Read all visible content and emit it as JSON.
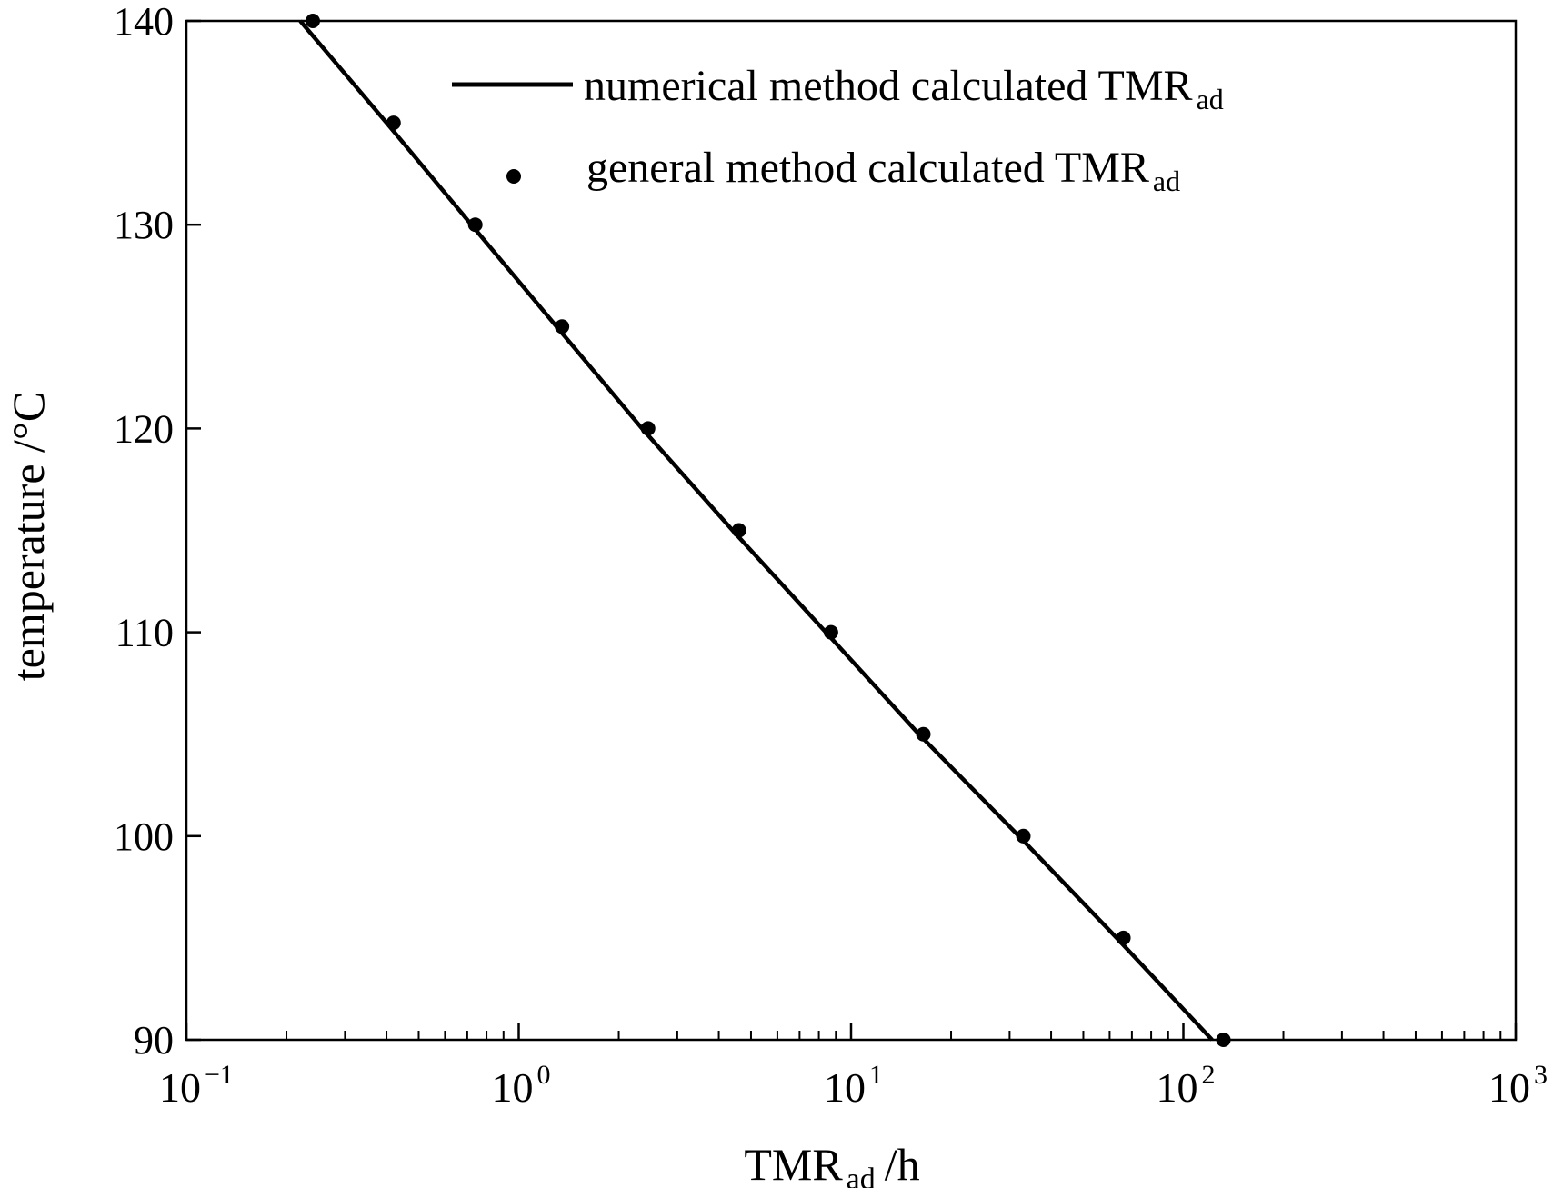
{
  "chart_data": {
    "type": "line",
    "title": "",
    "xlabel": "TMR",
    "xlabel_sub": "ad",
    "xlabel_unit": "/h",
    "ylabel": "temperature /°C",
    "xscale": "log",
    "xlim": [
      0.1,
      1000
    ],
    "ylim": [
      90,
      140
    ],
    "grid": false,
    "legend_position": "top-right",
    "x_ticks": [
      {
        "base": "10",
        "exp": "−1"
      },
      {
        "base": "10",
        "exp": "0"
      },
      {
        "base": "10",
        "exp": "1"
      },
      {
        "base": "10",
        "exp": "2"
      },
      {
        "base": "10",
        "exp": "3"
      }
    ],
    "y_ticks": [
      "90",
      "100",
      "110",
      "120",
      "130",
      "140"
    ],
    "series": [
      {
        "name": "numerical method calculated TMR",
        "name_sub": "ad",
        "style": "line",
        "color": "#000000",
        "points": [
          {
            "x": 0.22,
            "y": 140
          },
          {
            "x": 0.4,
            "y": 135
          },
          {
            "x": 0.72,
            "y": 130
          },
          {
            "x": 1.3,
            "y": 125
          },
          {
            "x": 2.35,
            "y": 120
          },
          {
            "x": 4.4,
            "y": 115
          },
          {
            "x": 8.4,
            "y": 110
          },
          {
            "x": 16.0,
            "y": 105
          },
          {
            "x": 32.0,
            "y": 100
          },
          {
            "x": 63.0,
            "y": 95
          },
          {
            "x": 122.0,
            "y": 90
          }
        ]
      },
      {
        "name": "general method calculated TMR",
        "name_sub": "ad",
        "style": "scatter",
        "color": "#000000",
        "points": [
          {
            "x": 0.24,
            "y": 140
          },
          {
            "x": 0.42,
            "y": 135
          },
          {
            "x": 0.74,
            "y": 130
          },
          {
            "x": 1.35,
            "y": 125
          },
          {
            "x": 2.45,
            "y": 120
          },
          {
            "x": 4.6,
            "y": 115
          },
          {
            "x": 8.7,
            "y": 110
          },
          {
            "x": 16.5,
            "y": 105
          },
          {
            "x": 33.0,
            "y": 100
          },
          {
            "x": 66.0,
            "y": 95
          },
          {
            "x": 132.0,
            "y": 90
          }
        ]
      }
    ]
  }
}
